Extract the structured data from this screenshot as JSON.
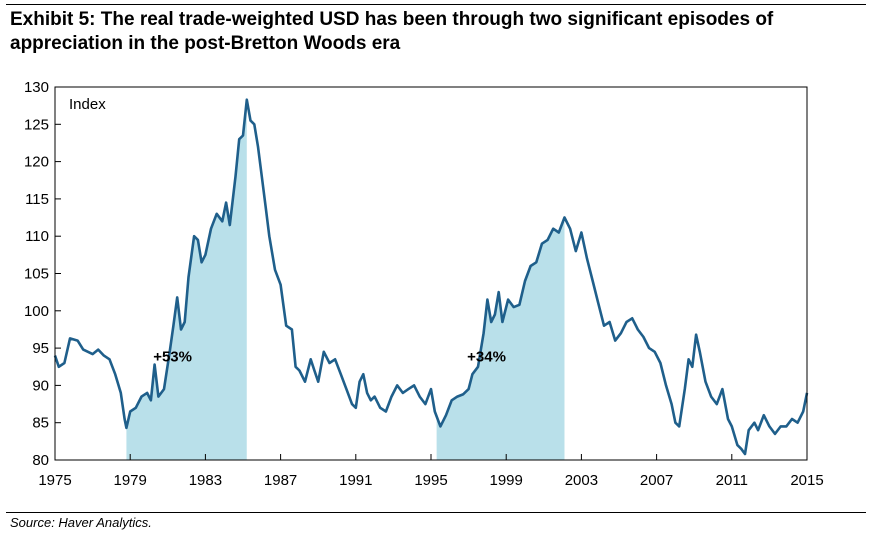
{
  "title": "Exhibit 5: The real trade-weighted USD has been through two significant episodes of appreciation in the post-Bretton Woods era",
  "source": "Source: Haver Analytics.",
  "chart_data": {
    "type": "line",
    "ylabel": "Index",
    "xlim": [
      1975,
      2015
    ],
    "ylim": [
      80,
      130
    ],
    "x_ticks": [
      "1975",
      "1979",
      "1983",
      "1987",
      "1991",
      "1995",
      "1999",
      "2003",
      "2007",
      "2011",
      "2015"
    ],
    "y_ticks": [
      "80",
      "85",
      "90",
      "95",
      "100",
      "105",
      "110",
      "115",
      "120",
      "125",
      "130"
    ],
    "grid": false,
    "line_color": "#1f5f8b",
    "shade_color": "#b9e0ea",
    "shaded_regions": [
      {
        "x_start": 1978.8,
        "x_end": 1985.2,
        "label": "+53%"
      },
      {
        "x_start": 1995.3,
        "x_end": 2002.1,
        "label": "+34%"
      }
    ],
    "series": [
      {
        "values": [
          [
            1975.0,
            94.0
          ],
          [
            1975.2,
            92.5
          ],
          [
            1975.5,
            93.0
          ],
          [
            1975.8,
            96.3
          ],
          [
            1976.2,
            96.0
          ],
          [
            1976.5,
            94.8
          ],
          [
            1977.0,
            94.2
          ],
          [
            1977.3,
            94.8
          ],
          [
            1977.6,
            94.0
          ],
          [
            1977.9,
            93.5
          ],
          [
            1978.2,
            91.5
          ],
          [
            1978.5,
            89.0
          ],
          [
            1978.7,
            85.5
          ],
          [
            1978.8,
            84.3
          ],
          [
            1979.0,
            86.5
          ],
          [
            1979.3,
            87.0
          ],
          [
            1979.6,
            88.5
          ],
          [
            1979.9,
            89.0
          ],
          [
            1980.1,
            88.0
          ],
          [
            1980.3,
            92.8
          ],
          [
            1980.5,
            88.5
          ],
          [
            1980.8,
            89.5
          ],
          [
            1981.1,
            94.5
          ],
          [
            1981.3,
            98.0
          ],
          [
            1981.5,
            101.8
          ],
          [
            1981.7,
            97.5
          ],
          [
            1981.9,
            98.5
          ],
          [
            1982.1,
            104.5
          ],
          [
            1982.4,
            110.0
          ],
          [
            1982.6,
            109.5
          ],
          [
            1982.8,
            106.5
          ],
          [
            1983.0,
            107.5
          ],
          [
            1983.3,
            111.0
          ],
          [
            1983.6,
            113.0
          ],
          [
            1983.9,
            112.0
          ],
          [
            1984.1,
            114.5
          ],
          [
            1984.3,
            111.5
          ],
          [
            1984.6,
            118.0
          ],
          [
            1984.8,
            123.0
          ],
          [
            1985.0,
            123.5
          ],
          [
            1985.2,
            128.3
          ],
          [
            1985.4,
            125.5
          ],
          [
            1985.6,
            125.0
          ],
          [
            1985.8,
            122.0
          ],
          [
            1986.0,
            118.0
          ],
          [
            1986.2,
            114.0
          ],
          [
            1986.4,
            110.0
          ],
          [
            1986.7,
            105.5
          ],
          [
            1987.0,
            103.5
          ],
          [
            1987.3,
            98.0
          ],
          [
            1987.6,
            97.5
          ],
          [
            1987.8,
            92.5
          ],
          [
            1988.0,
            92.0
          ],
          [
            1988.3,
            90.5
          ],
          [
            1988.6,
            93.5
          ],
          [
            1988.8,
            92.0
          ],
          [
            1989.0,
            90.5
          ],
          [
            1989.3,
            94.5
          ],
          [
            1989.6,
            93.0
          ],
          [
            1989.9,
            93.5
          ],
          [
            1990.2,
            91.5
          ],
          [
            1990.5,
            89.5
          ],
          [
            1990.8,
            87.5
          ],
          [
            1991.0,
            87.0
          ],
          [
            1991.2,
            90.5
          ],
          [
            1991.4,
            91.5
          ],
          [
            1991.6,
            89.0
          ],
          [
            1991.8,
            88.0
          ],
          [
            1992.0,
            88.5
          ],
          [
            1992.3,
            87.0
          ],
          [
            1992.6,
            86.5
          ],
          [
            1992.9,
            88.5
          ],
          [
            1993.2,
            90.0
          ],
          [
            1993.5,
            89.0
          ],
          [
            1993.8,
            89.5
          ],
          [
            1994.1,
            90.0
          ],
          [
            1994.4,
            88.5
          ],
          [
            1994.7,
            87.5
          ],
          [
            1995.0,
            89.5
          ],
          [
            1995.2,
            86.5
          ],
          [
            1995.5,
            84.5
          ],
          [
            1995.8,
            86.0
          ],
          [
            1996.1,
            88.0
          ],
          [
            1996.4,
            88.5
          ],
          [
            1996.7,
            88.8
          ],
          [
            1997.0,
            89.5
          ],
          [
            1997.2,
            91.5
          ],
          [
            1997.5,
            92.5
          ],
          [
            1997.8,
            97.0
          ],
          [
            1998.0,
            101.5
          ],
          [
            1998.2,
            98.5
          ],
          [
            1998.4,
            99.5
          ],
          [
            1998.6,
            102.5
          ],
          [
            1998.8,
            98.5
          ],
          [
            1999.1,
            101.5
          ],
          [
            1999.4,
            100.5
          ],
          [
            1999.7,
            100.8
          ],
          [
            2000.0,
            104.0
          ],
          [
            2000.3,
            106.0
          ],
          [
            2000.6,
            106.5
          ],
          [
            2000.9,
            109.0
          ],
          [
            2001.2,
            109.5
          ],
          [
            2001.5,
            111.0
          ],
          [
            2001.8,
            110.5
          ],
          [
            2002.1,
            112.5
          ],
          [
            2002.4,
            111.0
          ],
          [
            2002.7,
            108.0
          ],
          [
            2003.0,
            110.5
          ],
          [
            2003.3,
            107.0
          ],
          [
            2003.6,
            104.0
          ],
          [
            2003.9,
            101.0
          ],
          [
            2004.2,
            98.0
          ],
          [
            2004.5,
            98.5
          ],
          [
            2004.8,
            96.0
          ],
          [
            2005.1,
            97.0
          ],
          [
            2005.4,
            98.5
          ],
          [
            2005.7,
            99.0
          ],
          [
            2006.0,
            97.5
          ],
          [
            2006.3,
            96.5
          ],
          [
            2006.6,
            95.0
          ],
          [
            2006.9,
            94.5
          ],
          [
            2007.2,
            93.0
          ],
          [
            2007.5,
            90.0
          ],
          [
            2007.8,
            87.5
          ],
          [
            2008.0,
            85.0
          ],
          [
            2008.2,
            84.5
          ],
          [
            2008.5,
            89.5
          ],
          [
            2008.7,
            93.5
          ],
          [
            2008.9,
            92.5
          ],
          [
            2009.1,
            96.8
          ],
          [
            2009.3,
            94.5
          ],
          [
            2009.6,
            90.5
          ],
          [
            2009.9,
            88.5
          ],
          [
            2010.2,
            87.5
          ],
          [
            2010.5,
            89.5
          ],
          [
            2010.8,
            85.5
          ],
          [
            2011.0,
            84.5
          ],
          [
            2011.3,
            82.0
          ],
          [
            2011.5,
            81.5
          ],
          [
            2011.7,
            80.8
          ],
          [
            2011.9,
            84.0
          ],
          [
            2012.2,
            85.0
          ],
          [
            2012.4,
            84.0
          ],
          [
            2012.7,
            86.0
          ],
          [
            2013.0,
            84.5
          ],
          [
            2013.3,
            83.5
          ],
          [
            2013.6,
            84.5
          ],
          [
            2013.9,
            84.5
          ],
          [
            2014.2,
            85.5
          ],
          [
            2014.5,
            85.0
          ],
          [
            2014.8,
            86.5
          ],
          [
            2015.0,
            89.0
          ]
        ]
      }
    ],
    "annotations": [
      "+53%",
      "+34%"
    ]
  }
}
